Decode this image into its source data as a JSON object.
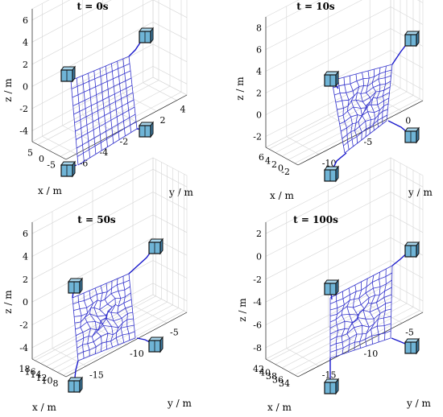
{
  "chart_data": [
    {
      "type": "3d-mesh",
      "title": "t = 0s",
      "xlabel": "x / m",
      "ylabel": "y / m",
      "zlabel": "z / m",
      "x_ticks": [
        "-5",
        "0",
        "5"
      ],
      "y_ticks": [
        "-6",
        "-4",
        "-2",
        "0",
        "2",
        "4"
      ],
      "z_ticks": [
        "6",
        "4",
        "2",
        "0",
        "-2",
        "-4"
      ],
      "mesh_color": "#3333cc",
      "cube_color": "#6fb4d6"
    },
    {
      "type": "3d-mesh",
      "title": "t = 10s",
      "xlabel": "x / m",
      "ylabel": "y / m",
      "zlabel": "z / m",
      "x_ticks": [
        "-2",
        "0",
        "2",
        "4",
        "6"
      ],
      "y_ticks": [
        "-10",
        "-5",
        "0"
      ],
      "z_ticks": [
        "8",
        "6",
        "4",
        "2",
        "0",
        "-2"
      ],
      "mesh_color": "#3333cc",
      "cube_color": "#6fb4d6"
    },
    {
      "type": "3d-mesh",
      "title": "t = 50s",
      "xlabel": "x / m",
      "ylabel": "y / m",
      "zlabel": "z / m",
      "x_ticks": [
        "8",
        "10",
        "12",
        "14",
        "16",
        "18"
      ],
      "y_ticks": [
        "-15",
        "-10",
        "-5"
      ],
      "z_ticks": [
        "6",
        "4",
        "2",
        "0",
        "-2",
        "-4"
      ],
      "mesh_color": "#3333cc",
      "cube_color": "#6fb4d6"
    },
    {
      "type": "3d-mesh",
      "title": "t = 100s",
      "xlabel": "x / m",
      "ylabel": "y / m",
      "zlabel": "z / m",
      "x_ticks": [
        "34",
        "36",
        "38",
        "40",
        "42"
      ],
      "y_ticks": [
        "-15",
        "-10",
        "-5"
      ],
      "z_ticks": [
        "2",
        "0",
        "-2",
        "-4",
        "-6",
        "-8"
      ],
      "mesh_color": "#3333cc",
      "cube_color": "#6fb4d6"
    }
  ]
}
